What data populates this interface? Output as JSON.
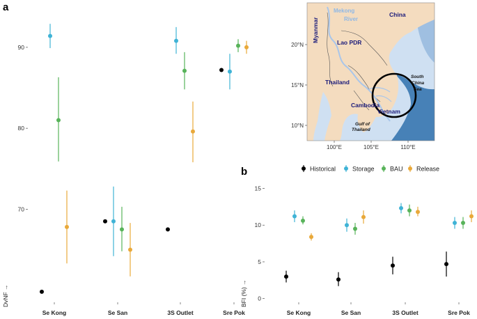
{
  "figure": {
    "panel_a_letter": "a",
    "panel_b_letter": "b"
  },
  "colors": {
    "Historical": "#000000",
    "Storage": "#3fb3d6",
    "BAU": "#58b35a",
    "Release": "#e9a93a"
  },
  "chart_data": [
    {
      "id": "panel-a",
      "type": "scatter",
      "title": "",
      "xlabel": "",
      "ylabel": "DvNF →",
      "categories": [
        "Se Kong",
        "Se San",
        "3S Outlet",
        "Sre Pok"
      ],
      "ylim": [
        58.5,
        95.5
      ],
      "yticks": [
        70,
        80,
        90
      ],
      "grid": false,
      "series": [
        {
          "name": "Historical",
          "values": [
            59.8,
            68.5,
            67.5,
            87.2
          ],
          "lower": [
            null,
            null,
            null,
            null
          ],
          "upper": [
            null,
            null,
            null,
            null
          ]
        },
        {
          "name": "Storage",
          "values": [
            91.4,
            68.5,
            90.8,
            87.0
          ],
          "lower": [
            89.9,
            64.2,
            89.2,
            84.8
          ],
          "upper": [
            92.9,
            72.8,
            92.5,
            89.2
          ]
        },
        {
          "name": "BAU",
          "values": [
            81.0,
            67.5,
            87.1,
            90.2
          ],
          "lower": [
            75.9,
            64.8,
            84.8,
            89.4
          ],
          "upper": [
            86.3,
            70.3,
            89.4,
            91.0
          ]
        },
        {
          "name": "Release",
          "values": [
            67.8,
            65.0,
            79.6,
            90.0
          ],
          "lower": [
            63.3,
            61.7,
            75.8,
            89.2
          ],
          "upper": [
            72.3,
            68.3,
            83.3,
            90.8
          ]
        }
      ]
    },
    {
      "id": "panel-b",
      "type": "scatter",
      "title": "",
      "xlabel": "",
      "ylabel": "BFI (%) →",
      "categories": [
        "Se Kong",
        "Se San",
        "3S Outlet",
        "Sre Pok"
      ],
      "ylim": [
        -0.5,
        15.8
      ],
      "yticks": [
        0,
        5,
        10,
        15
      ],
      "grid": false,
      "legend": "top",
      "series": [
        {
          "name": "Historical",
          "values": [
            3.0,
            2.6,
            4.5,
            4.7
          ],
          "lower": [
            2.2,
            1.7,
            3.3,
            3.0
          ],
          "upper": [
            3.8,
            3.6,
            5.7,
            6.4
          ]
        },
        {
          "name": "Storage",
          "values": [
            11.2,
            10.0,
            12.3,
            10.3
          ],
          "lower": [
            10.4,
            9.1,
            11.6,
            9.5
          ],
          "upper": [
            12.0,
            10.9,
            13.0,
            11.1
          ]
        },
        {
          "name": "BAU",
          "values": [
            10.6,
            9.5,
            12.0,
            10.3
          ],
          "lower": [
            10.1,
            8.7,
            11.2,
            9.5
          ],
          "upper": [
            11.2,
            10.3,
            12.8,
            11.1
          ]
        },
        {
          "name": "Release",
          "values": [
            8.4,
            11.1,
            11.8,
            11.2
          ],
          "lower": [
            7.9,
            10.2,
            11.2,
            10.4
          ],
          "upper": [
            8.9,
            12.0,
            12.5,
            12.0
          ]
        }
      ]
    }
  ],
  "map": {
    "labels": {
      "mekong": "Mekong",
      "river": "River",
      "china": "China",
      "myanmar": "Myanmar",
      "lao": "Lao PDR",
      "thailand": "Thailand",
      "cambodia": "Cambodia",
      "vietnam": "Vietnam",
      "south_china_sea_1": "South",
      "south_china_sea_2": "China",
      "south_china_sea_3": "Sea",
      "gulf_1": "Gulf of",
      "gulf_2": "Thailand"
    },
    "lat_ticks": [
      "20°N",
      "15°N",
      "10°N"
    ],
    "lon_ticks": [
      "100°E",
      "105°E",
      "110°E"
    ],
    "colors": {
      "land": "#f4dcbf",
      "sea_light": "#cfe0f2",
      "sea_deep": "#2f70ad",
      "river": "#a9c6ea",
      "circle": "#000000"
    }
  }
}
